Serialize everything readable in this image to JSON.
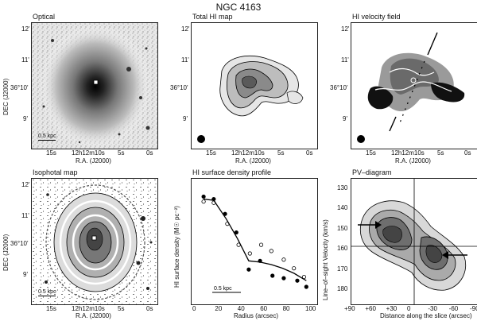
{
  "figure": {
    "title": "NGC 4163"
  },
  "panels": {
    "optical": {
      "title": "Optical",
      "scalebar": "0.5 kpc",
      "ylabel": "DEC (J2000)",
      "xlabel": "R.A. (J2000)",
      "yticks": [
        "12'",
        "11'",
        "36°10'",
        "9'"
      ],
      "xticks": [
        "15s",
        "12h12m10s",
        "5s",
        "0s"
      ]
    },
    "total_hi": {
      "title": "Total HI map",
      "xlabel": "R.A. (J2000)",
      "yticks": [
        "12'",
        "11'",
        "36°10'",
        "9'"
      ],
      "xticks": [
        "15s",
        "12h12m10s",
        "5s",
        "0s"
      ]
    },
    "velocity": {
      "title": "HI velocity field",
      "xlabel": "R.A. (J2000)",
      "yticks": [
        "12'",
        "11'",
        "36°10'",
        "9'"
      ],
      "xticks": [
        "15s",
        "12h12m10s",
        "5s",
        "0s"
      ]
    },
    "isophotal": {
      "title": "Isophotal map",
      "scalebar": "0.5 kpc",
      "ylabel": "DEC (J2000)",
      "xlabel": "R.A. (J2000)",
      "yticks": [
        "12'",
        "11'",
        "36°10'",
        "9'"
      ],
      "xticks": [
        "15s",
        "12h12m10s",
        "5s",
        "0s"
      ]
    },
    "pv": {
      "title": "PV–diagram"
    }
  },
  "chart_data": [
    {
      "type": "scatter",
      "title": "HI surface density profile",
      "xlabel": "Radius (arcsec)",
      "ylabel": "HI surface density (M☉ pc⁻²)",
      "xlim": [
        0,
        100
      ],
      "xticks": [
        0,
        20,
        40,
        60,
        80,
        100
      ],
      "annotation": "0.5 kpc",
      "series": [
        {
          "marker": "filled",
          "points": [
            [
              5,
              8.2
            ],
            [
              14,
              8.0
            ],
            [
              24,
              6.8
            ],
            [
              34,
              5.3
            ],
            [
              45,
              2.3
            ],
            [
              55,
              3.0
            ],
            [
              66,
              1.8
            ],
            [
              76,
              1.6
            ],
            [
              88,
              1.4
            ],
            [
              96,
              0.9
            ]
          ]
        },
        {
          "marker": "open",
          "points": [
            [
              5,
              7.8
            ],
            [
              14,
              7.7
            ],
            [
              26,
              6.0
            ],
            [
              36,
              4.3
            ],
            [
              46,
              3.6
            ],
            [
              56,
              4.3
            ],
            [
              65,
              3.8
            ],
            [
              76,
              3.1
            ],
            [
              85,
              2.4
            ],
            [
              94,
              1.7
            ]
          ]
        },
        {
          "marker": "line",
          "points": [
            [
              5,
              8.0
            ],
            [
              14,
              7.9
            ],
            [
              25,
              6.4
            ],
            [
              35,
              4.8
            ],
            [
              45,
              3.0
            ],
            [
              55,
              2.9
            ],
            [
              65,
              2.7
            ],
            [
              75,
              2.4
            ],
            [
              85,
              2.0
            ],
            [
              96,
              1.4
            ]
          ]
        }
      ],
      "ylim": [
        0,
        9
      ]
    },
    {
      "type": "heatmap",
      "title": "PV–diagram",
      "xlabel": "Distance along the slice (arcsec)",
      "ylabel": "Line–of–sight Velocity (km/s)",
      "xticks": [
        "+90",
        "+60",
        "+30",
        "0",
        "-30",
        "-60",
        "-90"
      ],
      "yticks": [
        130,
        140,
        150,
        160,
        170,
        180
      ],
      "xlim": [
        90,
        -90
      ],
      "ylim": [
        187,
        125
      ],
      "center_velocity": 160
    }
  ]
}
